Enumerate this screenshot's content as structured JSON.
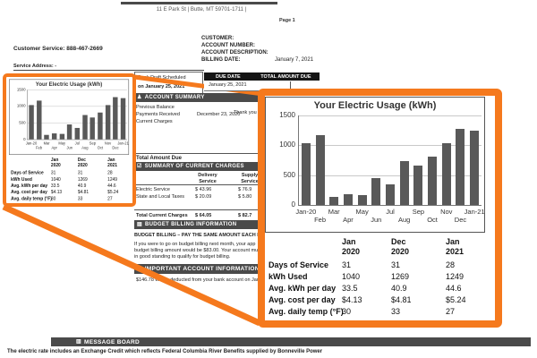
{
  "accent_orange": "#F5791D",
  "icons": {
    "account_summary_glyph": "♟",
    "charges_glyph": "☑",
    "budget_glyph": "▤",
    "important_glyph": "⚙",
    "message_glyph": "▥"
  },
  "page_header": {
    "address_line": "11 E Park St | Butte, MT 59701-1711 |",
    "page_label": "Page 1",
    "customer_service": "Customer Service: 888-467-2669",
    "customer_label": "CUSTOMER:",
    "account_number_label": "ACCOUNT NUMBER:",
    "account_description_label": "ACCOUNT DESCRIPTION:",
    "billing_date_label": "BILLING DATE:",
    "billing_date_value": "January 7, 2021",
    "service_address_label": "Service Address: -"
  },
  "due_section": {
    "bank_draft_line1": "Bank Draft Scheduled",
    "bank_draft_line2": "on January 25, 2021",
    "due_date_header": "DUE DATE",
    "total_amount_header": "TOTAL AMOUNT DUE",
    "due_date_value": "January 25, 2021"
  },
  "account_summary": {
    "title": "ACCOUNT SUMMARY",
    "previous_balance_label": "Previous Balance",
    "payments_received_label": "Payments Received",
    "payments_date": "December 23, 2020",
    "thank_you": "Thank you",
    "current_charges_label": "Current Charges",
    "total_amount_due_label": "Total Amount Due"
  },
  "charges": {
    "title": "SUMMARY OF CURRENT CHARGES",
    "col1_header": "Delivery\nService",
    "col2_header": "Supply\nService",
    "rows": [
      {
        "label": "Electric Service",
        "delivery": "$  43.96",
        "supply": "$  76.9"
      },
      {
        "label": "State and Local Taxes",
        "delivery": "$  20.09",
        "supply": "$  5.80"
      }
    ],
    "total_label": "Total Current Charges",
    "total_delivery": "$  64.05",
    "total_supply": "$  82.7"
  },
  "budget": {
    "title": "BUDGET BILLING INFORMATION",
    "subtitle": "BUDGET BILLING – PAY THE SAME AMOUNT EACH MON",
    "line1": "If you were to go on budget billing next month, your app",
    "line2": "budget billing amount would be $83.00. Your account mu",
    "line3": "in good standing to qualify for budget billing."
  },
  "important": {
    "title": "IMPORTANT ACCOUNT INFORMATION",
    "line1": "$146.78 will be deducted from your bank account on Jan"
  },
  "message_board": {
    "title": "MESSAGE BOARD",
    "line1": "The electric rate includes an Exchange Credit which reflects Federal Columbia River Benefits supplied by Bonneville Power"
  },
  "chart_data": {
    "type": "bar",
    "title": "Your Electric Usage (kWh)",
    "categories": [
      "Jan-20",
      "Feb",
      "Mar",
      "Apr",
      "May",
      "Jun",
      "Jul",
      "Aug",
      "Sep",
      "Oct",
      "Nov",
      "Dec",
      "Jan-21"
    ],
    "values": [
      1040,
      1170,
      140,
      180,
      160,
      450,
      340,
      740,
      660,
      810,
      1030,
      1269,
      1249
    ],
    "xlabel": "",
    "ylabel": "",
    "ylim": [
      0,
      1500
    ],
    "yticks": [
      0,
      500,
      1000,
      1500
    ],
    "grid": true,
    "legend": false,
    "bar_color": "#595959"
  },
  "usage_table": {
    "col_headers": [
      [
        "Jan",
        "2020"
      ],
      [
        "Dec",
        "2020"
      ],
      [
        "Jan",
        "2021"
      ]
    ],
    "rows": [
      {
        "label": "Days of Service",
        "values": [
          "31",
          "31",
          "28"
        ]
      },
      {
        "label": "kWh Used",
        "values": [
          "1040",
          "1269",
          "1249"
        ]
      },
      {
        "label": "Avg. kWh per day",
        "values": [
          "33.5",
          "40.9",
          "44.6"
        ]
      },
      {
        "label": "Avg. cost per day",
        "values": [
          "$4.13",
          "$4.81",
          "$5.24"
        ]
      },
      {
        "label": "Avg. daily temp (°F)",
        "values": [
          "30",
          "33",
          "27"
        ]
      }
    ]
  }
}
